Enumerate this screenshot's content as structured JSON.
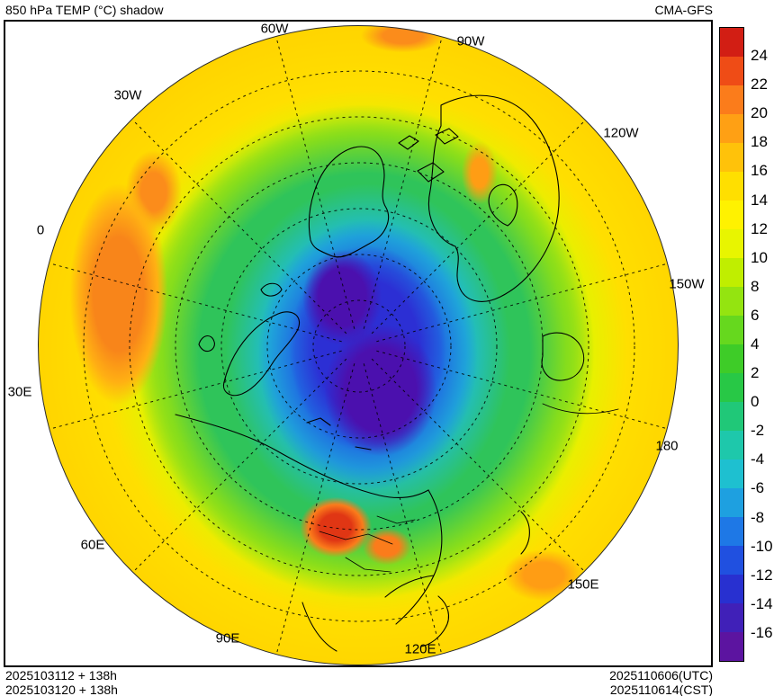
{
  "header": {
    "title": "850 hPa TEMP (°C) shadow",
    "model": "CMA-GFS"
  },
  "map": {
    "lon_labels": [
      "60W",
      "90W",
      "30W",
      "120W",
      "0",
      "150W",
      "30E",
      "180",
      "60E",
      "150E",
      "90E",
      "120E"
    ]
  },
  "colorbar": {
    "ticks": [
      24,
      22,
      20,
      18,
      16,
      14,
      12,
      10,
      8,
      6,
      4,
      2,
      0,
      -2,
      -4,
      -6,
      -8,
      -10,
      -12,
      -14,
      -16
    ],
    "colors": [
      "#d21e14",
      "#ef4c16",
      "#fb7c1b",
      "#ffa014",
      "#ffc20a",
      "#ffdf00",
      "#fff200",
      "#e8f500",
      "#c0ee00",
      "#94e410",
      "#66d81e",
      "#3ecc28",
      "#28c846",
      "#20c878",
      "#1ec8ab",
      "#1ec0d0",
      "#1ea0e0",
      "#1e78e6",
      "#2050e0",
      "#2830d0",
      "#4020b8",
      "#5c14a0"
    ]
  },
  "footer": {
    "init_lines": [
      "2025103112 + 138h",
      "2025103120 + 138h"
    ],
    "valid_lines": [
      "2025110606(UTC)",
      "2025110614(CST)"
    ]
  },
  "chart_data": {
    "type": "heatmap",
    "title": "850 hPa TEMP (°C) shadow",
    "units": "°C",
    "levels": [
      -16,
      -14,
      -12,
      -10,
      -8,
      -6,
      -4,
      -2,
      0,
      2,
      4,
      6,
      8,
      10,
      12,
      14,
      16,
      18,
      20,
      22,
      24
    ],
    "projection": "north polar stereographic",
    "legend_position": "right",
    "meridian_labels": [
      "0",
      "30W",
      "60W",
      "90W",
      "120W",
      "150W",
      "180",
      "150E",
      "120E",
      "90E",
      "60E",
      "30E"
    ]
  }
}
